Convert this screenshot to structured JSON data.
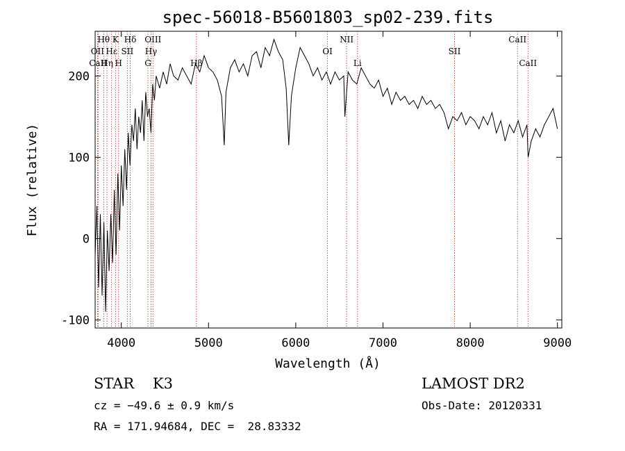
{
  "chart_data": {
    "type": "line",
    "title": "spec-56018-B5601803_sp02-239.fits",
    "xlabel": "Wavelength (Å)",
    "ylabel": "Flux (relative)",
    "xlim": [
      3700,
      9050
    ],
    "ylim": [
      -110,
      255
    ],
    "xticks": [
      4000,
      5000,
      6000,
      7000,
      8000,
      9000
    ],
    "yticks": [
      -100,
      0,
      100,
      200
    ],
    "series": [
      {
        "x": [
          3700,
          3720,
          3740,
          3760,
          3780,
          3800,
          3820,
          3840,
          3860,
          3880,
          3900,
          3920,
          3940,
          3960,
          3980,
          4000,
          4020,
          4040,
          4060,
          4080,
          4100,
          4120,
          4140,
          4160,
          4180,
          4200,
          4220,
          4240,
          4260,
          4280,
          4300,
          4320,
          4340,
          4360,
          4380,
          4400,
          4440,
          4480,
          4520,
          4560,
          4600,
          4650,
          4700,
          4750,
          4800,
          4850,
          4900,
          4950,
          5000,
          5050,
          5100,
          5150,
          5180,
          5200,
          5250,
          5300,
          5350,
          5400,
          5450,
          5500,
          5550,
          5600,
          5650,
          5700,
          5750,
          5800,
          5850,
          5890,
          5920,
          5950,
          6000,
          6050,
          6100,
          6150,
          6200,
          6250,
          6300,
          6350,
          6400,
          6450,
          6500,
          6550,
          6563,
          6580,
          6600,
          6650,
          6700,
          6750,
          6800,
          6850,
          6900,
          6950,
          7000,
          7050,
          7100,
          7150,
          7200,
          7250,
          7300,
          7350,
          7400,
          7450,
          7500,
          7550,
          7600,
          7650,
          7700,
          7750,
          7800,
          7850,
          7900,
          7950,
          8000,
          8050,
          8100,
          8150,
          8200,
          8250,
          8300,
          8350,
          8400,
          8450,
          8500,
          8550,
          8600,
          8650,
          8664,
          8700,
          8750,
          8800,
          8850,
          8900,
          8950,
          9000
        ],
        "values": [
          -20,
          40,
          -60,
          30,
          -70,
          20,
          -90,
          10,
          -40,
          30,
          -30,
          60,
          -20,
          80,
          10,
          90,
          40,
          110,
          60,
          130,
          90,
          140,
          120,
          160,
          110,
          150,
          130,
          170,
          120,
          180,
          150,
          160,
          130,
          190,
          170,
          200,
          185,
          205,
          190,
          215,
          200,
          195,
          210,
          200,
          190,
          215,
          205,
          225,
          210,
          205,
          195,
          175,
          115,
          180,
          210,
          220,
          205,
          215,
          200,
          225,
          230,
          210,
          235,
          225,
          245,
          230,
          220,
          185,
          115,
          175,
          210,
          235,
          225,
          215,
          200,
          210,
          195,
          205,
          190,
          205,
          195,
          200,
          150,
          175,
          205,
          195,
          190,
          210,
          200,
          190,
          185,
          195,
          175,
          185,
          165,
          180,
          170,
          175,
          165,
          170,
          160,
          175,
          165,
          170,
          160,
          165,
          155,
          135,
          150,
          145,
          155,
          140,
          150,
          145,
          135,
          150,
          140,
          155,
          130,
          145,
          120,
          140,
          130,
          145,
          125,
          140,
          100,
          120,
          135,
          125,
          140,
          150,
          160,
          135
        ]
      }
    ],
    "lines": [
      {
        "label": "Hθ",
        "x": 3798,
        "row": 0
      },
      {
        "label": "OII",
        "x": 3727,
        "row": 1
      },
      {
        "label": "CaII",
        "x": 3734,
        "row": 2
      },
      {
        "label": "Hη",
        "x": 3836,
        "row": 2
      },
      {
        "label": "Hε",
        "x": 3889,
        "row": 1
      },
      {
        "label": "K",
        "x": 3934,
        "row": 0
      },
      {
        "label": "H",
        "x": 3969,
        "row": 2
      },
      {
        "label": "SII",
        "x": 4069,
        "row": 1
      },
      {
        "label": "Hδ",
        "x": 4102,
        "row": 0
      },
      {
        "label": "OIII",
        "x": 4363,
        "row": 0
      },
      {
        "label": "Hγ",
        "x": 4341,
        "row": 1
      },
      {
        "label": "G",
        "x": 4305,
        "row": 2
      },
      {
        "label": "Hβ",
        "x": 4861,
        "row": 2
      },
      {
        "label": "OI",
        "x": 6364,
        "row": 1
      },
      {
        "label": "NII",
        "x": 6583,
        "row": 0
      },
      {
        "label": "Li",
        "x": 6708,
        "row": 2
      },
      {
        "label": "SII",
        "x": 7820,
        "row": 1
      },
      {
        "label": "CaII",
        "x": 8542,
        "row": 0
      },
      {
        "label": "CaII",
        "x": 8662,
        "row": 2
      }
    ]
  },
  "info": {
    "class_line": "STAR    K3",
    "survey": "LAMOST DR2",
    "cz": "cz = −49.6 ± 0.9 km/s",
    "obs_date": "Obs-Date: 20120331",
    "radec": "RA = 171.94684, DEC =  28.83332"
  }
}
